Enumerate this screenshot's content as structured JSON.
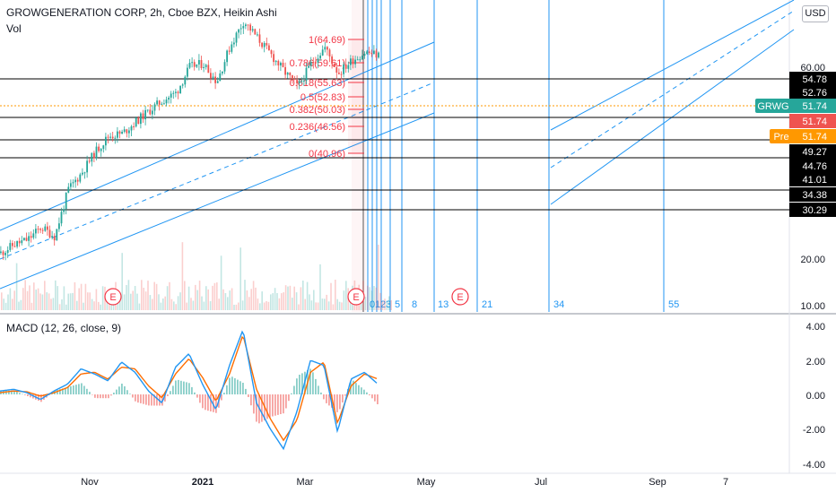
{
  "header": {
    "title": "GROWGENERATION CORP, 2h, Cboe BZX, Heikin Ashi",
    "volume_label": "Vol",
    "macd_label": "MACD (12, 26, close, 9)",
    "currency": "USD"
  },
  "colors": {
    "up": "#26a69a",
    "down": "#ef5350",
    "channel": "#2196f3",
    "fib": "#f23645",
    "level": "#000000",
    "macd": "#2196f3",
    "signal": "#ff6d00"
  },
  "chart_data": [
    {
      "type": "candlestick",
      "title": "GROWGENERATION CORP, 2h, Cboe BZX, Heikin Ashi",
      "log_scale": true,
      "y_range": [
        10,
        70
      ],
      "y_ticks": [
        "60.00",
        "20.00",
        "10.00"
      ],
      "x_ticks": [
        "Nov",
        "2021",
        "Mar",
        "May",
        "Jul",
        "Sep",
        "7"
      ],
      "price_series": {
        "dates": [
          "2020-09-28",
          "2020-10-05",
          "2020-10-12",
          "2020-10-19",
          "2020-10-26",
          "2020-11-02",
          "2020-11-09",
          "2020-11-16",
          "2020-11-23",
          "2020-11-30",
          "2020-12-07",
          "2020-12-14",
          "2020-12-21",
          "2020-12-28",
          "2021-01-04",
          "2021-01-11",
          "2021-01-18",
          "2021-01-25",
          "2021-02-01",
          "2021-02-08",
          "2021-02-15",
          "2021-02-22",
          "2021-03-01",
          "2021-03-08",
          "2021-03-15",
          "2021-03-22",
          "2021-03-29",
          "2021-04-05",
          "2021-04-12"
        ],
        "close": [
          14.2,
          15.0,
          15.5,
          16.8,
          15.8,
          21.5,
          24.0,
          27.5,
          30.5,
          31.0,
          33.5,
          36.0,
          38.5,
          40.5,
          48.0,
          49.0,
          43.5,
          55.0,
          64.7,
          58.0,
          52.0,
          46.5,
          42.0,
          49.0,
          54.5,
          46.0,
          50.0,
          52.8,
          51.74
        ]
      },
      "current_price": "51.74",
      "symbol_badge": "GRWG",
      "pre_badge": "Pre",
      "horizontal_levels": [
        "54.78",
        "52.76",
        "49.27",
        "44.76",
        "41.01",
        "34.38",
        "30.29"
      ],
      "current_level_labels": [
        "51.74",
        "51.74",
        "51.74"
      ],
      "fibonacci_retracement": [
        {
          "ratio": "1",
          "price": "64.69",
          "label": "1(64.69)"
        },
        {
          "ratio": "0.786",
          "price": "59.61",
          "label": "0.786(59.61)"
        },
        {
          "ratio": "0.618",
          "price": "55.63",
          "label": "0.618(55.63)"
        },
        {
          "ratio": "0.5",
          "price": "52.83",
          "label": "0.5(52.83)"
        },
        {
          "ratio": "0.382",
          "price": "50.03",
          "label": "0.382(50.03)"
        },
        {
          "ratio": "0.236",
          "price": "46.56",
          "label": "0.236(46.56)"
        },
        {
          "ratio": "0",
          "price": "40.96",
          "label": "0(40.96)"
        }
      ],
      "fibonacci_time_zones": [
        "0",
        "1",
        "2",
        "3",
        "5",
        "8",
        "13",
        "21",
        "34",
        "55"
      ],
      "earnings_markers": [
        "E",
        "E",
        "E"
      ],
      "regression_channels": 2
    },
    {
      "type": "line",
      "title": "MACD (12, 26, close, 9)",
      "y_range": [
        -4.2,
        4.4
      ],
      "y_ticks": [
        "4.00",
        "2.00",
        "0.00",
        "-2.00",
        "-4.00"
      ],
      "series": [
        {
          "name": "MACD",
          "values": [
            0.2,
            0.3,
            0.1,
            -0.3,
            0.2,
            0.6,
            1.5,
            1.2,
            0.8,
            1.9,
            1.3,
            0.2,
            -0.5,
            1.6,
            2.4,
            0.6,
            -0.9,
            1.7,
            3.8,
            -0.5,
            -2.0,
            -3.2,
            -1.0,
            2.0,
            1.7,
            -2.2,
            0.9,
            1.3,
            0.6
          ]
        },
        {
          "name": "Signal",
          "values": [
            0.1,
            0.2,
            0.15,
            -0.1,
            0.1,
            0.4,
            1.2,
            1.3,
            0.9,
            1.6,
            1.5,
            0.5,
            -0.2,
            1.2,
            2.1,
            1.0,
            -0.4,
            1.2,
            3.5,
            0.3,
            -1.4,
            -2.7,
            -1.5,
            1.3,
            1.9,
            -1.7,
            0.5,
            1.2,
            0.9
          ]
        }
      ]
    }
  ]
}
